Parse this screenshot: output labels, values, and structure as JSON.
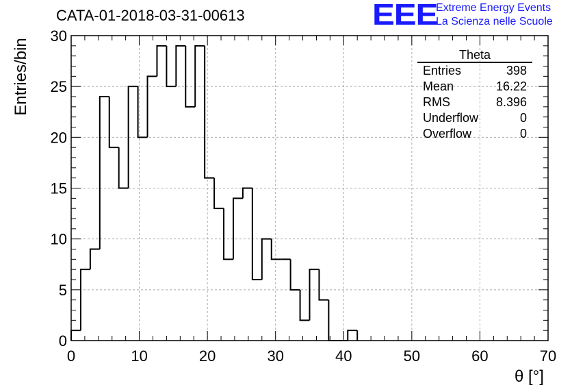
{
  "header": {
    "title": "CATA-01-2018-03-31-00613",
    "logo_mark": "EEE",
    "logo_line1": "Extreme Energy Events",
    "logo_line2": "La Scienza nelle Scuole"
  },
  "stats": {
    "title": "Theta",
    "rows": [
      {
        "label": "Entries",
        "value": "398"
      },
      {
        "label": "Mean",
        "value": "16.22"
      },
      {
        "label": "RMS",
        "value": "8.396"
      },
      {
        "label": "Underflow",
        "value": "0"
      },
      {
        "label": "Overflow",
        "value": "0"
      }
    ]
  },
  "chart_data": {
    "type": "histogram",
    "title": "CATA-01-2018-03-31-00613",
    "xlabel": "θ [°]",
    "ylabel": "Entries/bin",
    "xlim": [
      0,
      70
    ],
    "ylim": [
      0,
      30
    ],
    "bin_width": 1.4,
    "bins_start": 0,
    "values": [
      1,
      7,
      9,
      24,
      19,
      15,
      25,
      20,
      26,
      29,
      25,
      29,
      23,
      29,
      16,
      13,
      8,
      14,
      15,
      6,
      10,
      8,
      8,
      5,
      2,
      7,
      4,
      0,
      0,
      1
    ],
    "x_ticks": [
      "0",
      "10",
      "20",
      "30",
      "40",
      "50",
      "60",
      "70"
    ],
    "y_ticks": [
      "0",
      "5",
      "10",
      "15",
      "20",
      "25",
      "30"
    ],
    "grid": true,
    "line_color": "#000000"
  }
}
